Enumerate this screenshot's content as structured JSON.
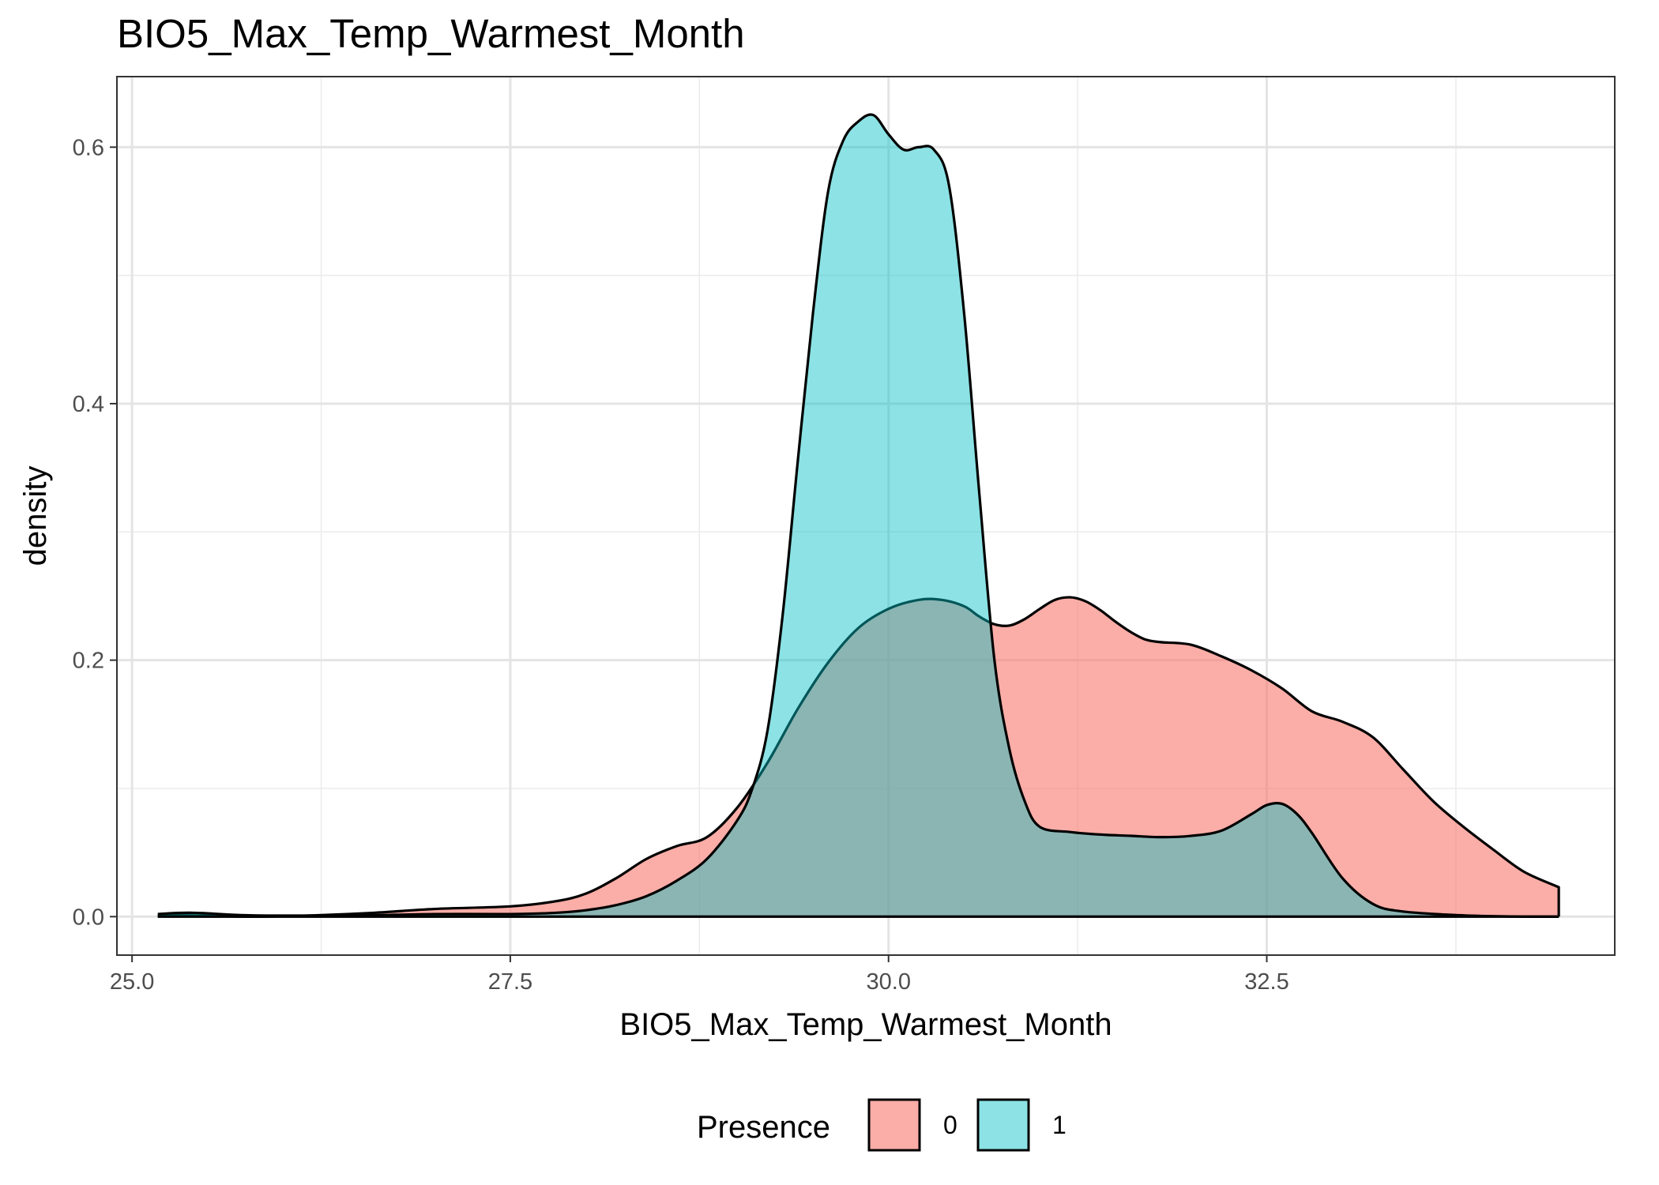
{
  "chart_data": {
    "type": "area",
    "subtype": "density",
    "title": "BIO5_Max_Temp_Warmest_Month",
    "xlabel": "BIO5_Max_Temp_Warmest_Month",
    "ylabel": "density",
    "xlim": [
      24.9,
      34.8
    ],
    "ylim": [
      -0.03,
      0.655
    ],
    "x_ticks": [
      {
        "value": 25.0,
        "label": "25.0"
      },
      {
        "value": 27.5,
        "label": "27.5"
      },
      {
        "value": 30.0,
        "label": "30.0"
      },
      {
        "value": 32.5,
        "label": "32.5"
      }
    ],
    "y_ticks": [
      {
        "value": 0.0,
        "label": "0.0"
      },
      {
        "value": 0.2,
        "label": "0.2"
      },
      {
        "value": 0.4,
        "label": "0.4"
      },
      {
        "value": 0.6,
        "label": "0.6"
      }
    ],
    "grid": true,
    "legend": {
      "title": "Presence",
      "position": "bottom"
    },
    "series": [
      {
        "name": "0",
        "color": "#F8766D",
        "fill_opacity": 0.6,
        "x": [
          25.17,
          25.4,
          25.8,
          26.2,
          26.6,
          27.0,
          27.5,
          27.8,
          28.0,
          28.2,
          28.4,
          28.6,
          28.8,
          29.0,
          29.2,
          29.4,
          29.6,
          29.8,
          30.0,
          30.2,
          30.35,
          30.5,
          30.6,
          30.7,
          30.8,
          30.9,
          31.0,
          31.1,
          31.2,
          31.3,
          31.4,
          31.5,
          31.6,
          31.7,
          31.8,
          32.0,
          32.2,
          32.4,
          32.6,
          32.8,
          33.0,
          33.2,
          33.4,
          33.6,
          33.8,
          34.0,
          34.2,
          34.43
        ],
        "y": [
          0.001,
          0.001,
          0.0,
          0.001,
          0.003,
          0.006,
          0.008,
          0.012,
          0.018,
          0.03,
          0.045,
          0.055,
          0.062,
          0.085,
          0.12,
          0.162,
          0.198,
          0.225,
          0.24,
          0.247,
          0.247,
          0.242,
          0.234,
          0.228,
          0.227,
          0.232,
          0.24,
          0.247,
          0.249,
          0.246,
          0.239,
          0.23,
          0.222,
          0.216,
          0.214,
          0.212,
          0.203,
          0.192,
          0.178,
          0.16,
          0.152,
          0.14,
          0.115,
          0.09,
          0.07,
          0.052,
          0.035,
          0.023
        ]
      },
      {
        "name": "1",
        "color": "#00BFC4",
        "fill_opacity": 0.45,
        "x": [
          25.17,
          25.4,
          25.8,
          26.5,
          27.0,
          27.5,
          27.8,
          28.0,
          28.2,
          28.4,
          28.6,
          28.8,
          29.0,
          29.1,
          29.2,
          29.3,
          29.4,
          29.5,
          29.6,
          29.7,
          29.8,
          29.9,
          30.0,
          30.1,
          30.2,
          30.3,
          30.4,
          30.5,
          30.6,
          30.7,
          30.8,
          30.9,
          31.0,
          31.2,
          31.4,
          31.6,
          31.8,
          32.0,
          32.2,
          32.4,
          32.5,
          32.6,
          32.7,
          32.8,
          33.0,
          33.2,
          33.4,
          33.8,
          34.2,
          34.43
        ],
        "y": [
          0.002,
          0.003,
          0.001,
          0.001,
          0.002,
          0.002,
          0.003,
          0.005,
          0.009,
          0.016,
          0.028,
          0.045,
          0.075,
          0.1,
          0.145,
          0.235,
          0.355,
          0.47,
          0.565,
          0.605,
          0.62,
          0.625,
          0.61,
          0.598,
          0.6,
          0.598,
          0.57,
          0.47,
          0.33,
          0.2,
          0.13,
          0.09,
          0.07,
          0.066,
          0.064,
          0.063,
          0.062,
          0.063,
          0.067,
          0.08,
          0.087,
          0.088,
          0.08,
          0.065,
          0.03,
          0.01,
          0.004,
          0.001,
          0.0,
          0.0
        ]
      }
    ]
  }
}
